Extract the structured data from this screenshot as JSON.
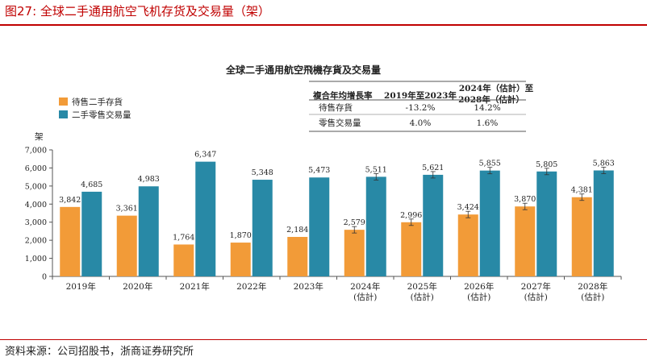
{
  "figure": {
    "title": "图27:   全球二手通用航空飞机存货及交易量（架）",
    "source": "资料来源：公司招股书，浙商证券研究所"
  },
  "colors": {
    "accent": "#c00000",
    "inventory": "#F29B38",
    "transactions": "#2889A6"
  },
  "chart_data": {
    "type": "bar",
    "title": "全球二手通用航空飛機存貨及交易量",
    "ylabel": "架",
    "xlabel": "",
    "ylim": [
      0,
      7000
    ],
    "yticks": [
      "0",
      "1,000",
      "2,000",
      "3,000",
      "4,000",
      "5,000",
      "6,000",
      "7,000"
    ],
    "grid": false,
    "legend_position": "top-left",
    "categories": [
      [
        "2019年"
      ],
      [
        "2020年"
      ],
      [
        "2021年"
      ],
      [
        "2022年"
      ],
      [
        "2023年"
      ],
      [
        "2024年",
        "(估計)"
      ],
      [
        "2025年",
        "(估計)"
      ],
      [
        "2026年",
        "(估計)"
      ],
      [
        "2027年",
        "(估計)"
      ],
      [
        "2028年",
        "(估計)"
      ]
    ],
    "series": [
      {
        "name": "待售二手存貨",
        "values": [
          3842,
          3361,
          1764,
          1870,
          2184,
          2579,
          2996,
          3424,
          3870,
          4381
        ],
        "labels": [
          "3,842",
          "3,361",
          "1,764",
          "1,870",
          "2,184",
          "2,579",
          "2,996",
          "3,424",
          "3,870",
          "4,381"
        ]
      },
      {
        "name": "二手零售交易量",
        "values": [
          4685,
          4983,
          6347,
          5348,
          5473,
          5511,
          5621,
          5855,
          5805,
          5863
        ],
        "labels": [
          "4,685",
          "4,983",
          "6,347",
          "5,348",
          "5,473",
          "5,511",
          "5,621",
          "5,855",
          "5,805",
          "5,863"
        ]
      }
    ],
    "error_bars_from_index": 5,
    "table": {
      "header": [
        "複合年均增長率",
        "2019年至2023年",
        "2024年（估計）至",
        "2028年（估計）"
      ],
      "rows": [
        [
          "待售存貨",
          "-13.2%",
          "14.2%"
        ],
        [
          "零售交易量",
          "4.0%",
          "1.6%"
        ]
      ]
    }
  }
}
